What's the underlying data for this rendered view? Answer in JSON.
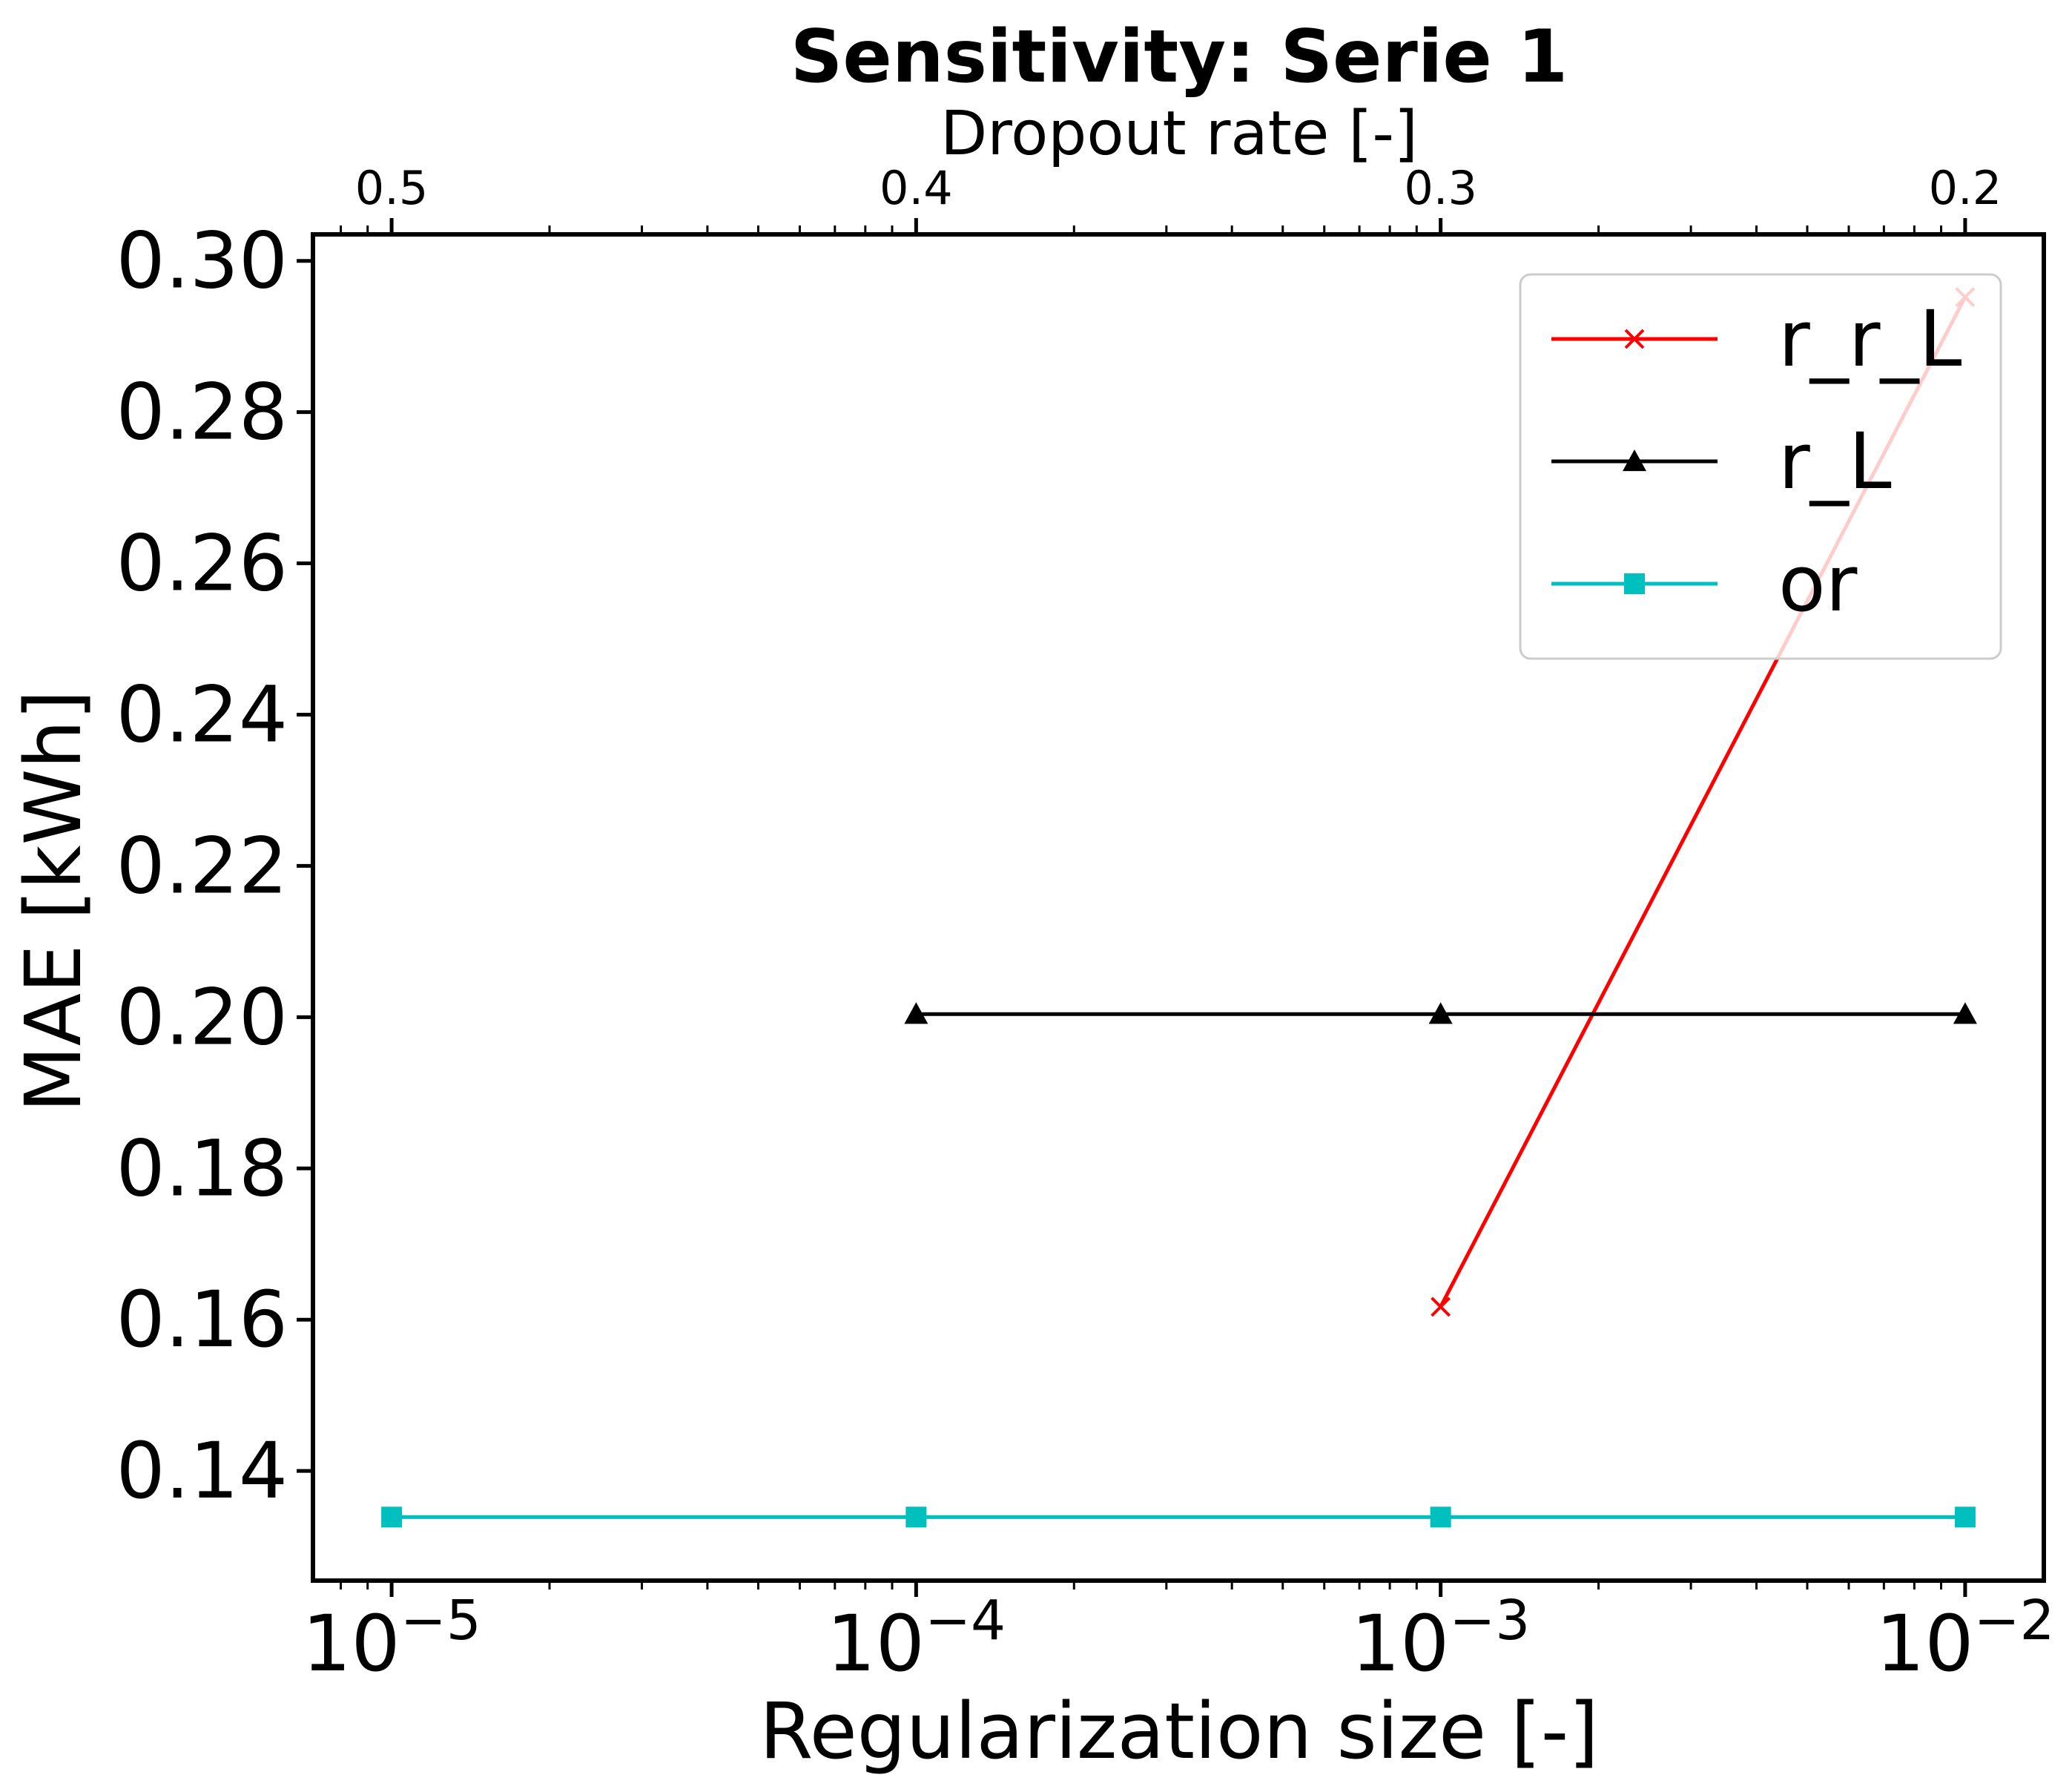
{
  "chart_data": {
    "type": "line",
    "title": "Sensitivity: Serie 1",
    "xlabel": "Regularization size [-]",
    "ylabel": "MAE [kWh]",
    "x2label": "Dropout rate [-]",
    "xscale": "log",
    "xlim_exp": [
      -5.15,
      -1.85
    ],
    "ylim": [
      0.1255,
      0.3035
    ],
    "x_ticks": [
      {
        "exp": -5,
        "base": "10",
        "sup": "−5"
      },
      {
        "exp": -4,
        "base": "10",
        "sup": "−4"
      },
      {
        "exp": -3,
        "base": "10",
        "sup": "−3"
      },
      {
        "exp": -2,
        "base": "10",
        "sup": "−2"
      }
    ],
    "x2_ticks": [
      {
        "exp": -5,
        "label": "0.5"
      },
      {
        "exp": -4,
        "label": "0.4"
      },
      {
        "exp": -3,
        "label": "0.3"
      },
      {
        "exp": -2,
        "label": "0.2"
      }
    ],
    "y_ticks": [
      {
        "value": 0.14,
        "label": "0.14"
      },
      {
        "value": 0.16,
        "label": "0.16"
      },
      {
        "value": 0.18,
        "label": "0.18"
      },
      {
        "value": 0.2,
        "label": "0.20"
      },
      {
        "value": 0.22,
        "label": "0.22"
      },
      {
        "value": 0.24,
        "label": "0.24"
      },
      {
        "value": 0.26,
        "label": "0.26"
      },
      {
        "value": 0.28,
        "label": "0.28"
      },
      {
        "value": 0.3,
        "label": "0.30"
      }
    ],
    "series": [
      {
        "name": "r_r_L",
        "color": "#ff0000",
        "marker": "x",
        "x": [
          0.001,
          0.01
        ],
        "values": [
          0.1617,
          0.2952
        ]
      },
      {
        "name": "r_L",
        "color": "#000000",
        "marker": "triangle",
        "x": [
          0.0001,
          0.001,
          0.01
        ],
        "values": [
          0.2004,
          0.2004,
          0.2004
        ]
      },
      {
        "name": "or",
        "color": "#00bfbf",
        "marker": "square",
        "x": [
          1e-05,
          0.0001,
          0.001,
          0.01
        ],
        "values": [
          0.1339,
          0.1339,
          0.1339,
          0.1339
        ]
      }
    ],
    "legend": {
      "position": "upper-right",
      "entries": [
        "r_r_L",
        "r_L",
        "or"
      ]
    },
    "grid": false
  }
}
